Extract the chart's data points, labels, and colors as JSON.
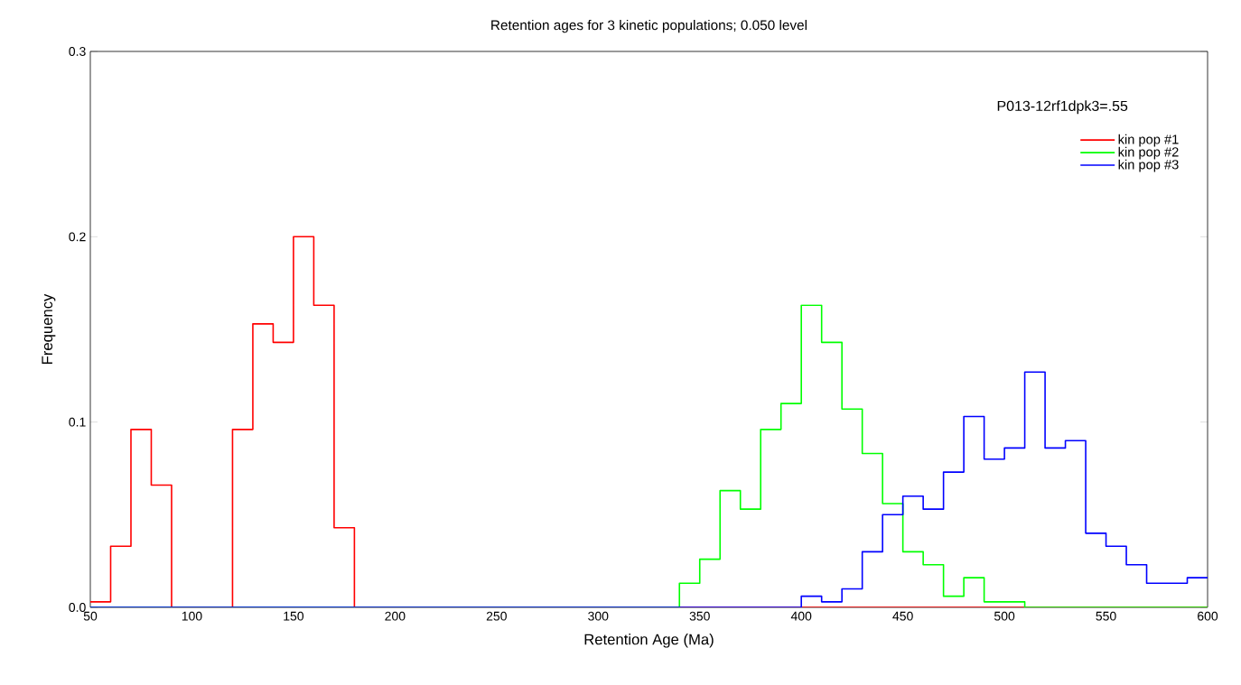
{
  "chart_data": {
    "type": "histogram",
    "title": "Retention ages for 3 kinetic populations; 0.050 level",
    "xlabel": "Retention Age (Ma)",
    "ylabel": "Frequency",
    "legend_title": "P013-12rf1dpk3=.55",
    "bins": [
      50,
      60,
      70,
      80,
      90,
      100,
      110,
      120,
      130,
      140,
      150,
      160,
      170,
      180,
      190,
      200,
      210,
      220,
      230,
      240,
      250,
      260,
      270,
      280,
      290,
      300,
      310,
      320,
      330,
      340,
      350,
      360,
      370,
      380,
      390,
      400,
      410,
      420,
      430,
      440,
      450,
      460,
      470,
      480,
      490,
      500,
      510,
      520,
      530,
      540,
      550,
      560,
      570,
      580,
      590,
      600
    ],
    "series": [
      {
        "name": "kin pop #1",
        "color": "#ff0000",
        "values": [
          0.003,
          0.033,
          0.096,
          0.066,
          0,
          0,
          0,
          0.096,
          0.153,
          0.143,
          0.2,
          0.163,
          0.043,
          0,
          0,
          0,
          0,
          0,
          0,
          0,
          0,
          0,
          0,
          0,
          0,
          0,
          0,
          0,
          0,
          0,
          0,
          0,
          0,
          0,
          0,
          0,
          0,
          0,
          0,
          0,
          0,
          0,
          0,
          0,
          0,
          0,
          0,
          0,
          0,
          0,
          0,
          0,
          0,
          0,
          0
        ]
      },
      {
        "name": "kin pop #2",
        "color": "#00ff00",
        "values": [
          0,
          0,
          0,
          0,
          0,
          0,
          0,
          0,
          0,
          0,
          0,
          0,
          0,
          0,
          0,
          0,
          0,
          0,
          0,
          0,
          0,
          0,
          0,
          0,
          0,
          0,
          0,
          0,
          0,
          0.013,
          0.026,
          0.063,
          0.053,
          0.096,
          0.11,
          0.163,
          0.143,
          0.107,
          0.083,
          0.056,
          0.03,
          0.023,
          0.006,
          0.016,
          0.003,
          0.003,
          0,
          0,
          0,
          0,
          0,
          0,
          0,
          0,
          0
        ]
      },
      {
        "name": "kin pop #3",
        "color": "#0000ff",
        "values": [
          0,
          0,
          0,
          0,
          0,
          0,
          0,
          0,
          0,
          0,
          0,
          0,
          0,
          0,
          0,
          0,
          0,
          0,
          0,
          0,
          0,
          0,
          0,
          0,
          0,
          0,
          0,
          0,
          0,
          0,
          0,
          0,
          0,
          0,
          0,
          0.006,
          0.003,
          0.01,
          0.03,
          0.05,
          0.06,
          0.053,
          0.073,
          0.103,
          0.08,
          0.086,
          0.127,
          0.086,
          0.09,
          0.04,
          0.033,
          0.023,
          0.013,
          0.013,
          0.016
        ]
      }
    ],
    "xlim": [
      50,
      600
    ],
    "ylim": [
      0,
      0.3
    ],
    "xticks": [
      50,
      100,
      150,
      200,
      250,
      300,
      350,
      400,
      450,
      500,
      550,
      600
    ],
    "yticks": [
      {
        "value": 0,
        "label": "0.0"
      },
      {
        "value": 0.1,
        "label": "0.1"
      },
      {
        "value": 0.2,
        "label": "0.2"
      },
      {
        "value": 0.3,
        "label": "0.3"
      }
    ],
    "grid": false,
    "legend": "top right"
  }
}
